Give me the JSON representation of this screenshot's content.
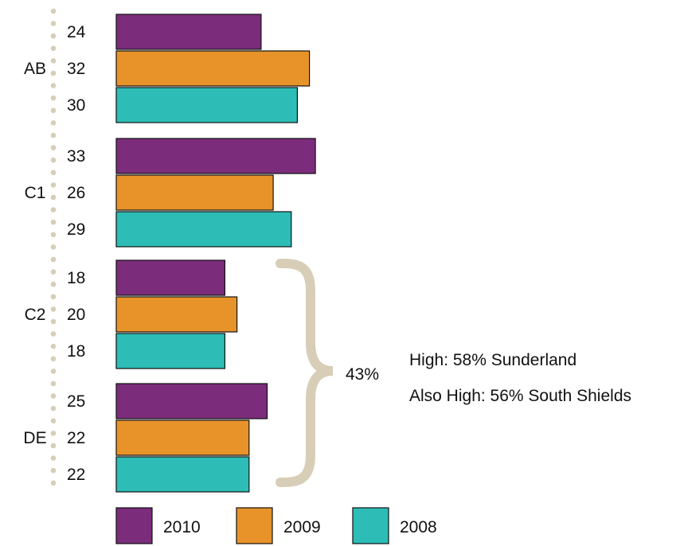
{
  "chart_data": {
    "type": "bar",
    "orientation": "horizontal",
    "categories": [
      "AB",
      "C1",
      "C2",
      "DE"
    ],
    "series": [
      {
        "name": "2010",
        "color": "#7b2d7b",
        "values": [
          24,
          33,
          18,
          25
        ]
      },
      {
        "name": "2009",
        "color": "#e8932a",
        "values": [
          32,
          26,
          20,
          22
        ]
      },
      {
        "name": "2008",
        "color": "#2dbdb6",
        "values": [
          30,
          29,
          18,
          22
        ]
      }
    ],
    "legend_position": "bottom",
    "grid": false,
    "annotations": {
      "bracket_groups": [
        "C2",
        "DE"
      ],
      "bracket_label": "43%",
      "bracket_color": "#d8cdb6",
      "note_1": "High: 58% Sunderland",
      "note_2": "Also High: 56% South Shields"
    },
    "dot_color": "#d8cdb6"
  }
}
